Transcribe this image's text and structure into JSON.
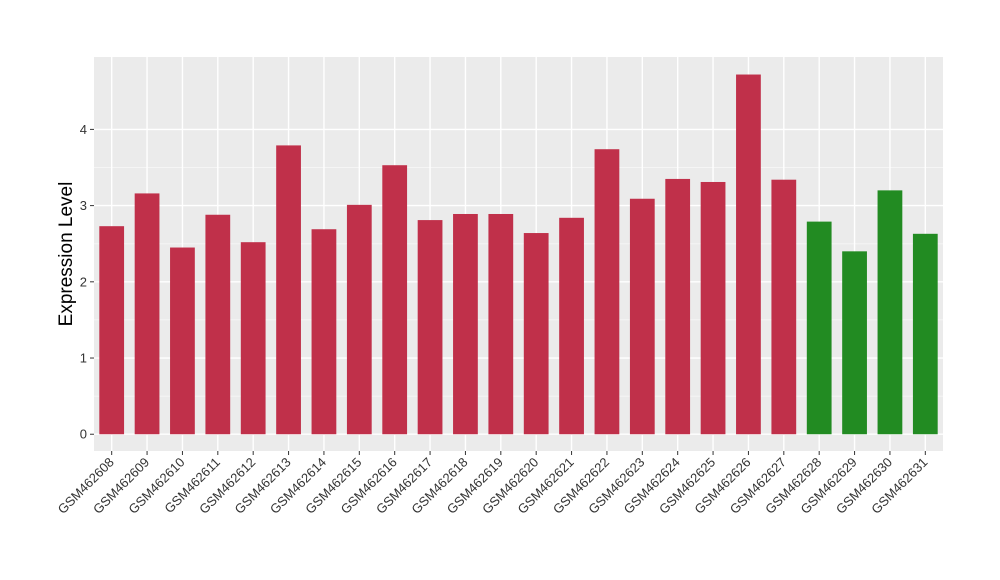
{
  "chart_data": {
    "type": "bar",
    "title": "",
    "xlabel": "",
    "ylabel": "Expression Level",
    "ylim": [
      -0.22,
      4.95
    ],
    "yticks": [
      0,
      1,
      2,
      3,
      4
    ],
    "grid": true,
    "legend": "none",
    "colors": {
      "case": "#c0304a",
      "control": "#228b22",
      "panel_background": "#ebebeb",
      "grid_major": "#ffffff",
      "grid_minor": "#f5f5f5"
    },
    "categories": [
      "GSM462608",
      "GSM462609",
      "GSM462610",
      "GSM462611",
      "GSM462612",
      "GSM462613",
      "GSM462614",
      "GSM462615",
      "GSM462616",
      "GSM462617",
      "GSM462618",
      "GSM462619",
      "GSM462620",
      "GSM462621",
      "GSM462622",
      "GSM462623",
      "GSM462624",
      "GSM462625",
      "GSM462626",
      "GSM462627",
      "GSM462628",
      "GSM462629",
      "GSM462630",
      "GSM462631"
    ],
    "values": [
      2.73,
      3.16,
      2.45,
      2.88,
      2.52,
      3.79,
      2.69,
      3.01,
      3.53,
      2.81,
      2.89,
      2.89,
      2.64,
      2.84,
      3.74,
      3.09,
      3.35,
      3.31,
      4.72,
      3.34,
      2.79,
      2.4,
      3.2,
      2.63
    ],
    "groups": [
      "case",
      "case",
      "case",
      "case",
      "case",
      "case",
      "case",
      "case",
      "case",
      "case",
      "case",
      "case",
      "case",
      "case",
      "case",
      "case",
      "case",
      "case",
      "case",
      "case",
      "control",
      "control",
      "control",
      "control"
    ]
  }
}
